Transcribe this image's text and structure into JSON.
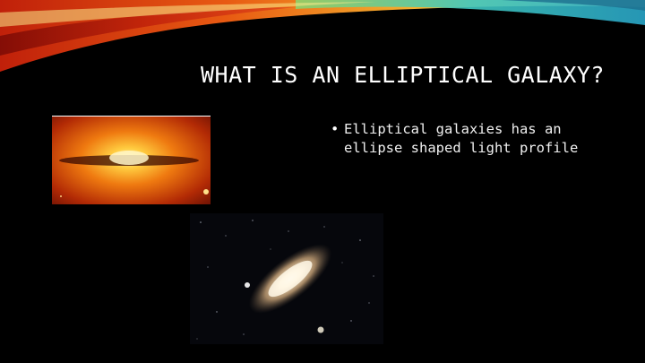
{
  "slide": {
    "title": "WHAT IS AN ELLIPTICAL GALAXY?",
    "bullets": [
      "Elliptical galaxies has an ellipse shaped light profile"
    ]
  },
  "images": [
    {
      "name": "edge-on-galaxy-photo"
    },
    {
      "name": "spiral-galaxy-photo"
    }
  ],
  "colors": {
    "background": "#000000",
    "title_text": "#ffffff",
    "banner_red": "#c0200a",
    "banner_orange": "#f08a1a",
    "banner_yellow": "#f6d64a",
    "banner_teal": "#3fc7c0"
  }
}
